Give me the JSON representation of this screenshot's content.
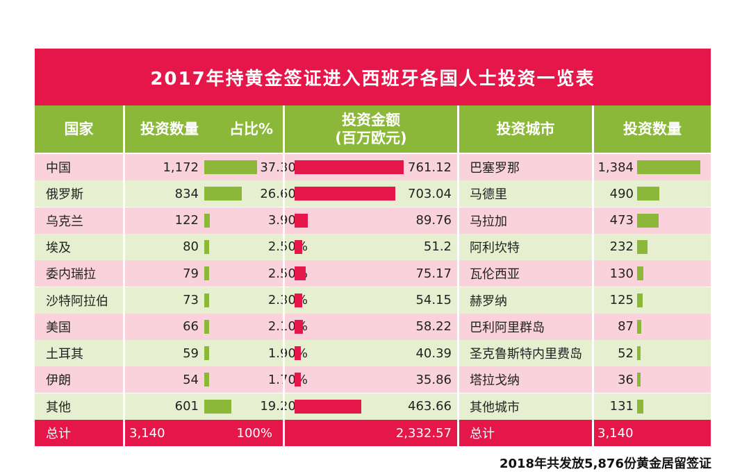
{
  "colors": {
    "title_bg": "#e5174a",
    "header_bg": "#8cb83a",
    "row_pink": "#f9d2dc",
    "row_green": "#e6efcf",
    "bar_green": "#8cb83a",
    "bar_red": "#e5174a",
    "total_bg": "#e5174a"
  },
  "title": "2017年持黄金签证进入西班牙各国人士投资一览表",
  "headers": {
    "country": "国家",
    "count": "投资数量",
    "share": "占比%",
    "amount_line1": "投资金额",
    "amount_line2": "(百万欧元)",
    "city": "投资城市",
    "city_count": "投资数量"
  },
  "chart_data": {
    "type": "table",
    "title": "2017年持黄金签证进入西班牙各国人士投资一览表",
    "countries": [
      "中国",
      "俄罗斯",
      "乌克兰",
      "埃及",
      "委内瑞拉",
      "沙特阿拉伯",
      "美国",
      "土耳其",
      "伊朗",
      "其他"
    ],
    "counts": [
      1172,
      834,
      122,
      80,
      79,
      73,
      66,
      59,
      54,
      601
    ],
    "counts_display": [
      "1,172",
      "834",
      "122",
      "80",
      "79",
      "73",
      "66",
      "59",
      "54",
      "601"
    ],
    "shares": [
      "37.30%",
      "26.60%",
      "3.90%",
      "2.50%",
      "2.50%",
      "2.30%",
      "2.10%",
      "1.90%",
      "1.70%",
      "19.20%"
    ],
    "amounts": [
      761.12,
      703.04,
      89.76,
      51.2,
      75.17,
      54.15,
      58.22,
      40.39,
      35.86,
      463.66
    ],
    "amounts_display": [
      "761.12",
      "703.04",
      "89.76",
      "51.2",
      "75.17",
      "54.15",
      "58.22",
      "40.39",
      "35.86",
      "463.66"
    ],
    "cities": [
      "巴塞罗那",
      "马德里",
      "马拉加",
      "阿利坎特",
      "瓦伦西亚",
      "赫罗纳",
      "巴利阿里群岛",
      "圣克鲁斯特内里费岛",
      "塔拉戈纳",
      "其他城市"
    ],
    "city_counts": [
      1384,
      490,
      473,
      232,
      130,
      125,
      87,
      52,
      36,
      131
    ],
    "city_counts_display": [
      "1,384",
      "490",
      "473",
      "232",
      "130",
      "125",
      "87",
      "52",
      "36",
      "131"
    ],
    "totals": {
      "label": "总计",
      "count": "3,140",
      "share": "100%",
      "amount": "2,332.57",
      "city_label": "总计",
      "city_count": "3,140"
    }
  },
  "footer": "2018年共发放5,876份黄金居留签证"
}
